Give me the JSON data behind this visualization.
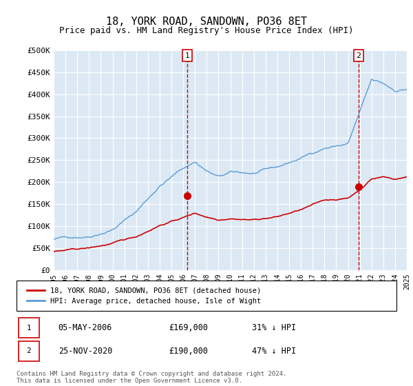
{
  "title": "18, YORK ROAD, SANDOWN, PO36 8ET",
  "subtitle": "Price paid vs. HM Land Registry's House Price Index (HPI)",
  "ylim": [
    0,
    500000
  ],
  "yticks": [
    0,
    50000,
    100000,
    150000,
    200000,
    250000,
    300000,
    350000,
    400000,
    450000,
    500000
  ],
  "ytick_labels": [
    "£0",
    "£50K",
    "£100K",
    "£150K",
    "£200K",
    "£250K",
    "£300K",
    "£350K",
    "£400K",
    "£450K",
    "£500K"
  ],
  "plot_bg_color": "#dce9f5",
  "hpi_color": "#5b9bd5",
  "price_color": "#cc0000",
  "marker_color": "#cc0000",
  "dashed_line_color": "#cc0000",
  "legend_label_price": "18, YORK ROAD, SANDOWN, PO36 8ET (detached house)",
  "legend_label_hpi": "HPI: Average price, detached house, Isle of Wight",
  "transaction1_date": "05-MAY-2006",
  "transaction1_price": "£169,000",
  "transaction1_info": "31% ↓ HPI",
  "transaction1_year": 2006.35,
  "transaction1_value": 169000,
  "transaction2_date": "25-NOV-2020",
  "transaction2_price": "£190,000",
  "transaction2_info": "47% ↓ HPI",
  "transaction2_year": 2020.9,
  "transaction2_value": 190000,
  "footer": "Contains HM Land Registry data © Crown copyright and database right 2024.\nThis data is licensed under the Open Government Licence v3.0."
}
